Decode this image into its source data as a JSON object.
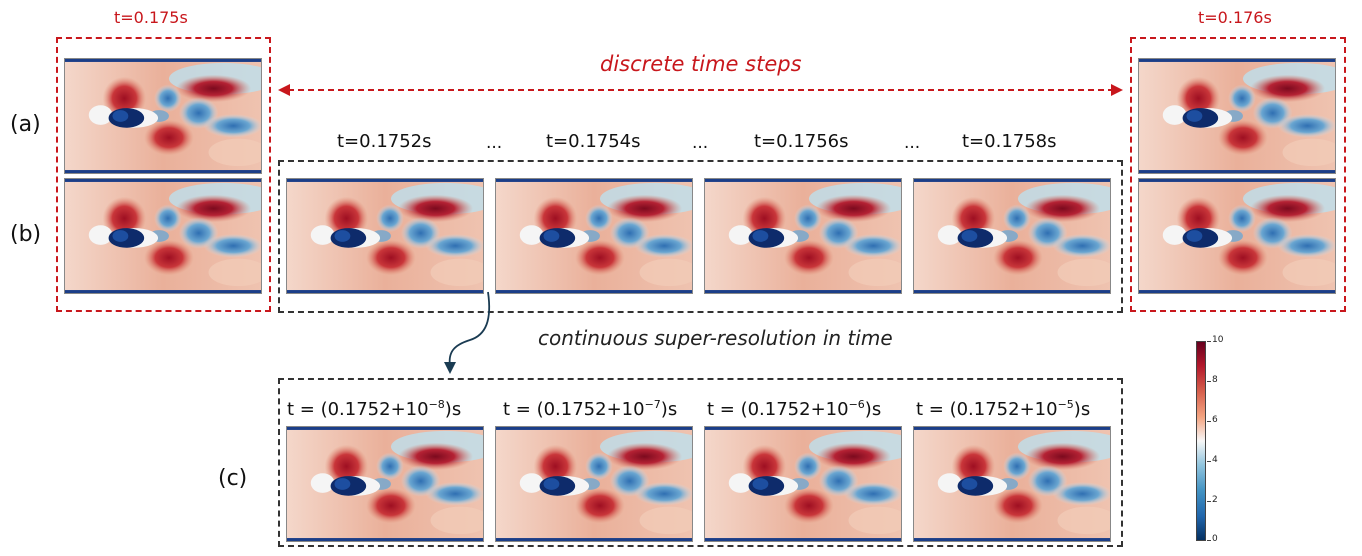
{
  "frames": {
    "left_time": "t=0.175s",
    "right_time": "t=0.176s"
  },
  "row_labels": {
    "a": "(a)",
    "b": "(b)",
    "c": "(c)"
  },
  "discrete_caption": "discrete time steps",
  "continuous_caption": "continuous super-resolution in time",
  "row_b_times": [
    "t=0.1752s",
    "t=0.1754s",
    "t=0.1756s",
    "t=0.1758s"
  ],
  "ellipsis": "...",
  "row_c_times": [
    {
      "prefix": "t = (0.1752+10",
      "exp": "−8",
      "suffix": ")s"
    },
    {
      "prefix": "t = (0.1752+10",
      "exp": "−7",
      "suffix": ")s"
    },
    {
      "prefix": "t = (0.1752+10",
      "exp": "−6",
      "suffix": ")s"
    },
    {
      "prefix": "t = (0.1752+10",
      "exp": "−5",
      "suffix": ")s"
    }
  ],
  "colorbar": {
    "ticks": [
      "10",
      "8",
      "6",
      "4",
      "2",
      "0"
    ],
    "colormap": [
      "#67001f",
      "#b2182b",
      "#d6604d",
      "#f4a582",
      "#f7f7f7",
      "#92c5de",
      "#4393c3",
      "#2166ac",
      "#053061"
    ]
  },
  "colors": {
    "red": "#c8171c",
    "dark": "#1a3b52"
  }
}
